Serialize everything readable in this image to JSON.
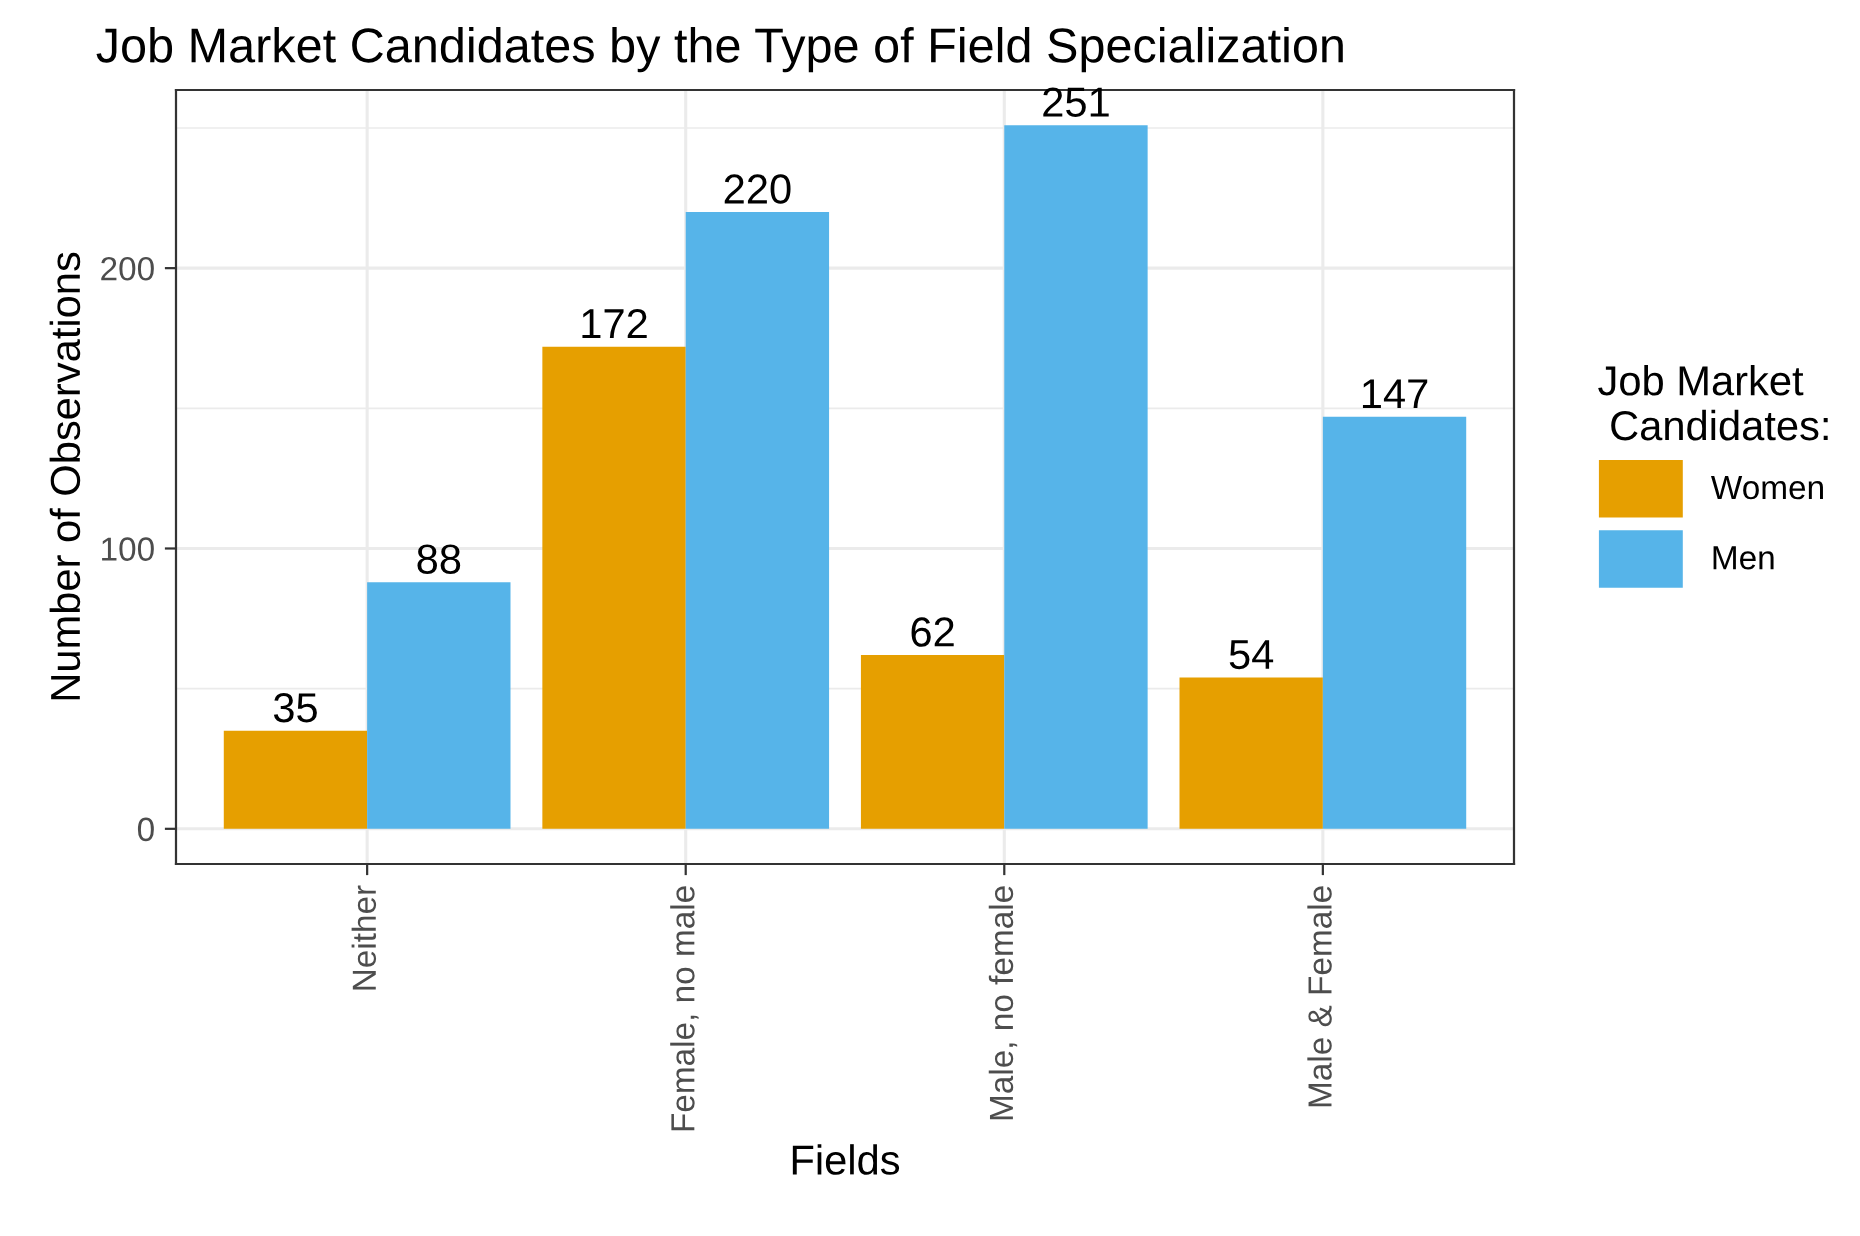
{
  "chart_data": {
    "type": "bar",
    "title": "Job Market Candidates by the Type of Field Specialization",
    "xlabel": "Fields",
    "ylabel": "Number of Observations",
    "legend_title": "Job Market\n Candidates:",
    "categories": [
      "Neither",
      "Female, no male",
      "Male, no female",
      "Male & Female"
    ],
    "series": [
      {
        "name": "Women",
        "color": "#e69f00",
        "values": [
          35,
          172,
          62,
          54
        ]
      },
      {
        "name": "Men",
        "color": "#56b4e9",
        "values": [
          88,
          220,
          251,
          147
        ]
      }
    ],
    "ylim": [
      -12.55,
      263.55
    ],
    "yticks": [
      0,
      100,
      200
    ],
    "grid": true,
    "legend": "right",
    "data_labels": true
  }
}
